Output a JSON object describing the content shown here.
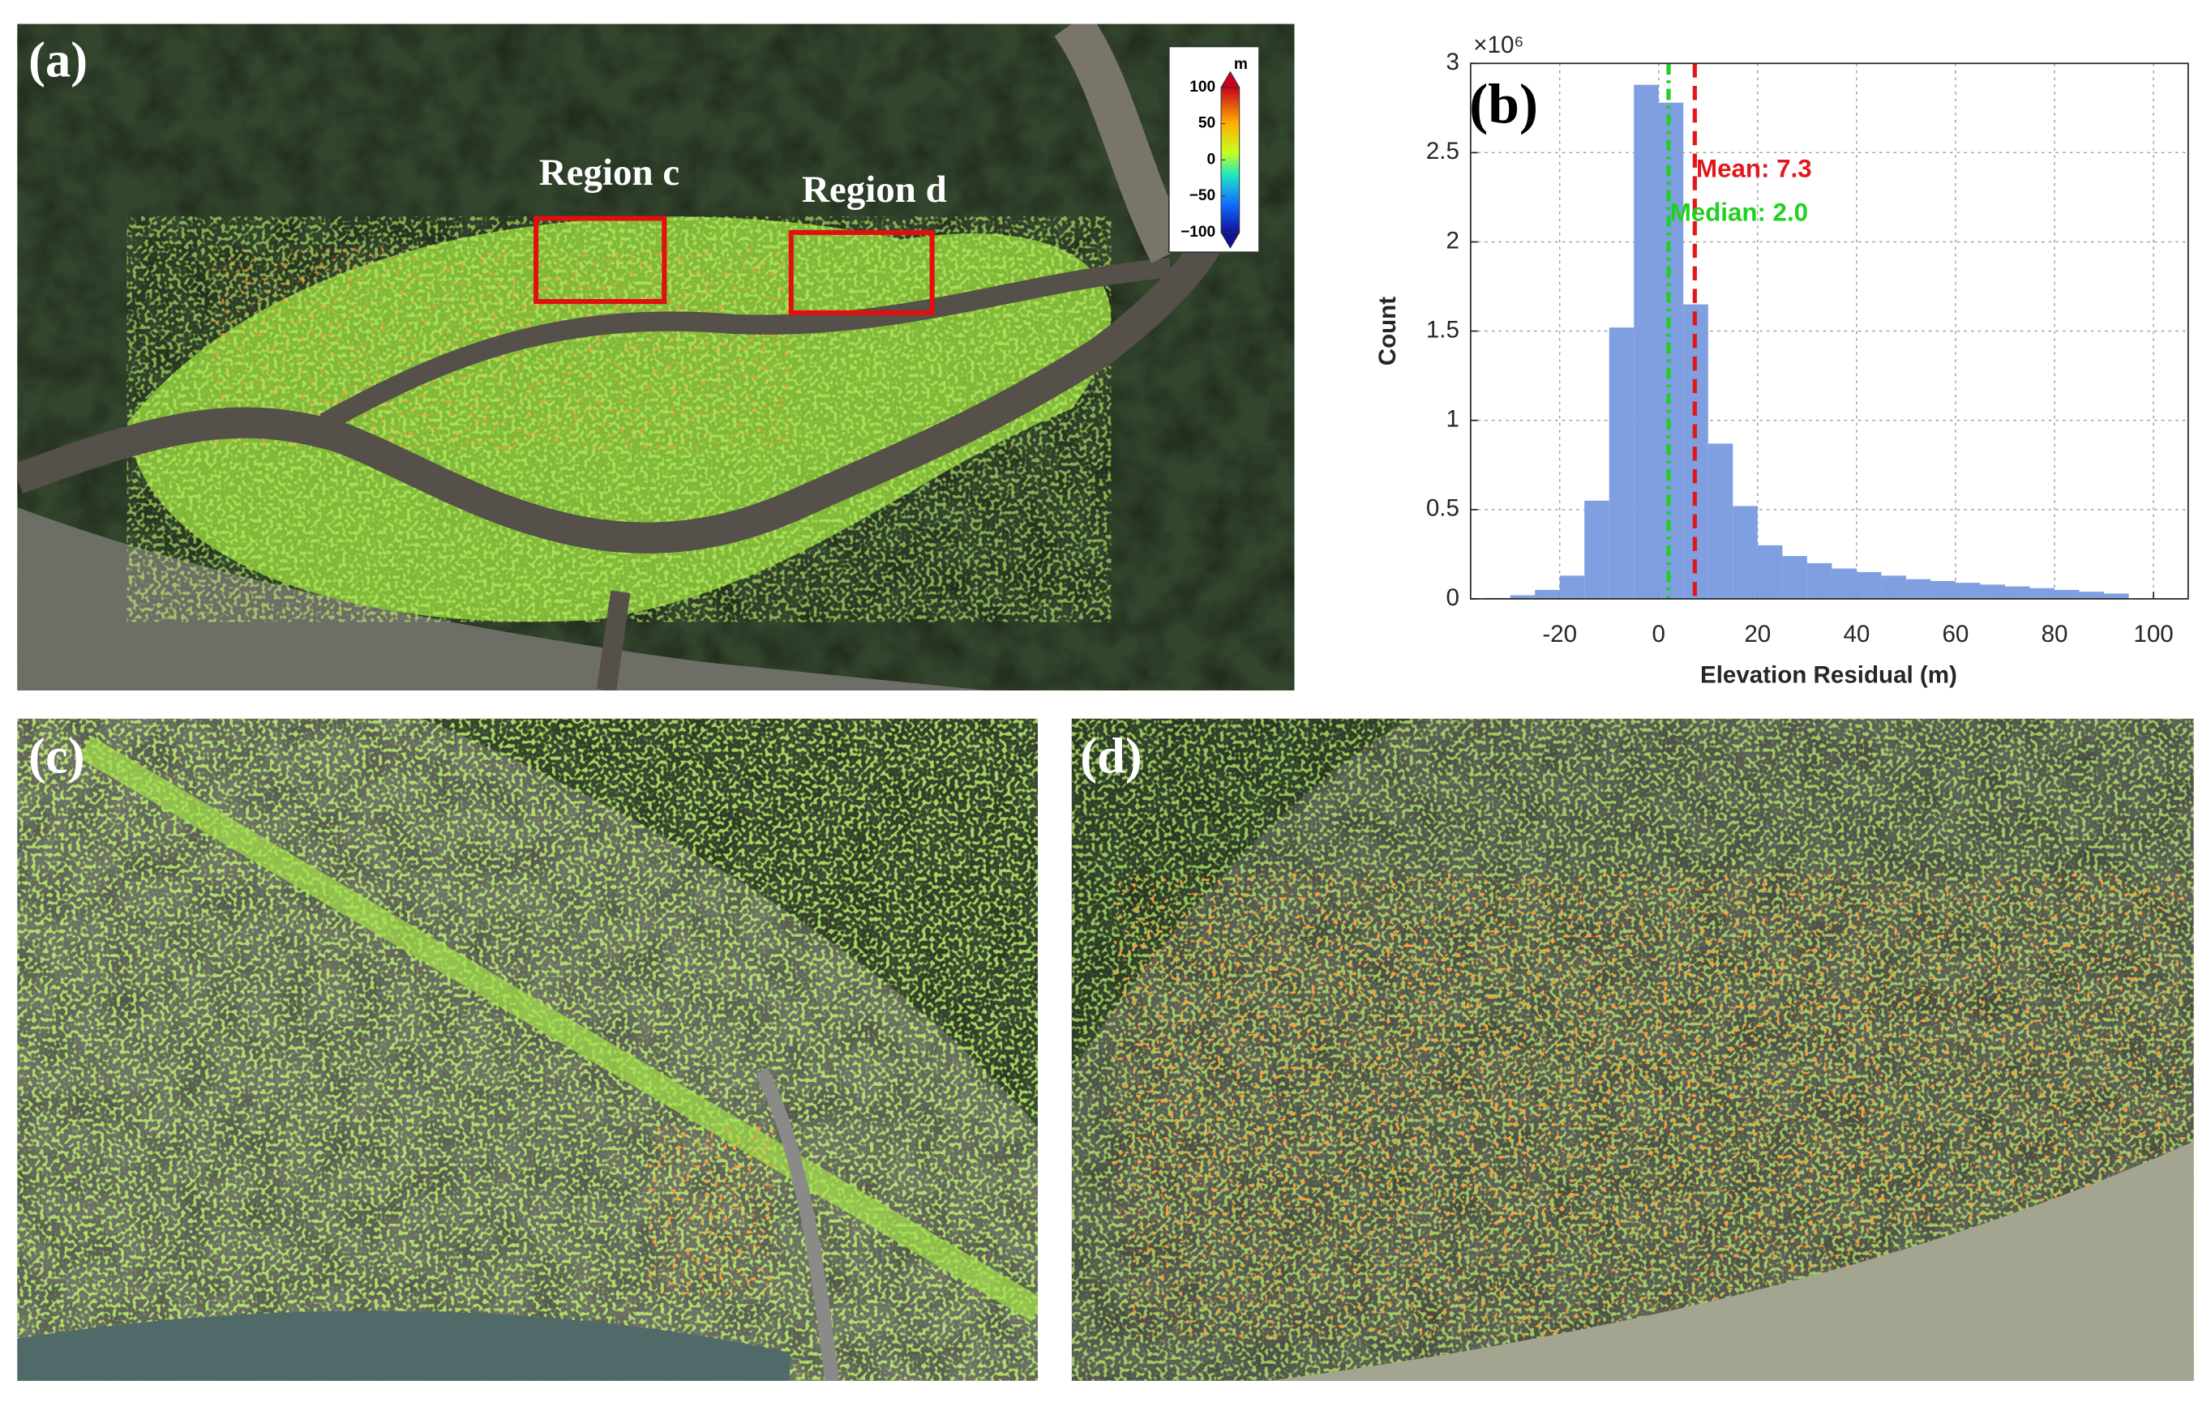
{
  "map_panel": {
    "panel_label": "(a)",
    "regions": [
      {
        "label": "Region c"
      },
      {
        "label": "Region d"
      }
    ],
    "colorbar": {
      "label": "m",
      "lim": [
        -100,
        100
      ],
      "ticks": [
        100,
        50,
        0,
        {
          "value": -50,
          "label": "−50"
        },
        {
          "value": -100,
          "label": "−100"
        }
      ]
    }
  },
  "panel_c": {
    "panel_label": "(c)"
  },
  "panel_d": {
    "panel_label": "(d)"
  },
  "chart_data": {
    "type": "histogram",
    "panel_label": "(b)",
    "x_label": "Elevation Residual (m)",
    "y_label": "Count",
    "y_exponent": "×10⁶",
    "bins": [
      -35,
      -30,
      -25,
      -20,
      -15,
      -10,
      -5,
      0,
      5,
      10,
      15,
      20,
      25,
      30,
      35,
      40,
      45,
      50,
      55,
      60,
      65,
      70,
      75,
      80,
      85,
      90,
      95
    ],
    "values": [
      0.005,
      0.02,
      0.05,
      0.13,
      0.55,
      1.52,
      2.88,
      2.78,
      1.65,
      0.87,
      0.52,
      0.3,
      0.24,
      0.2,
      0.17,
      0.15,
      0.13,
      0.11,
      0.1,
      0.09,
      0.08,
      0.07,
      0.06,
      0.05,
      0.04,
      0.03
    ],
    "color": "#7f9fe0",
    "xlim": [
      -38,
      107
    ],
    "ylim": [
      0,
      3
    ],
    "xticks": [
      -20,
      0,
      20,
      40,
      60,
      80,
      100
    ],
    "yticks": [
      0,
      0.5,
      1,
      1.5,
      2,
      2.5,
      3
    ],
    "grid": true,
    "annotations": [
      {
        "label": "Mean: 7.3",
        "value": 7.3,
        "color": "#e0181b"
      },
      {
        "label": "Median: 2.0",
        "value": 2.0,
        "color": "#22d022"
      }
    ]
  }
}
